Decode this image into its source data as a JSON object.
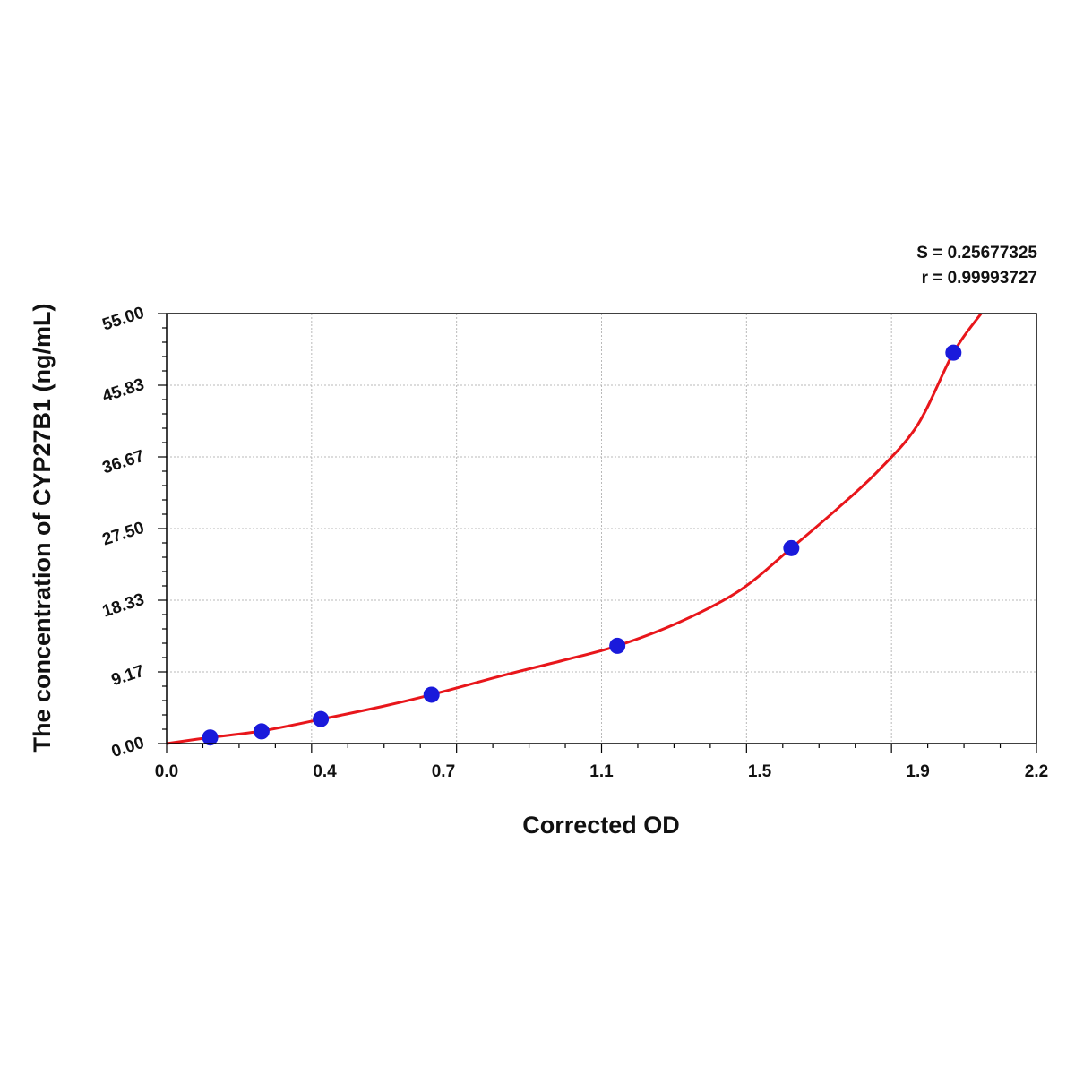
{
  "stats": {
    "s_text": "S = 0.25677325",
    "r_text": "r = 0.99993727"
  },
  "chart_data": {
    "type": "scatter",
    "title": "",
    "xlabel": "Corrected OD",
    "ylabel": "The concentration of CYP27B1 (ng/mL)",
    "xlim": [
      0.0,
      2.2
    ],
    "ylim": [
      0.0,
      55.0
    ],
    "x_tick_values": [
      0.0,
      0.4,
      0.7,
      1.1,
      1.5,
      1.9,
      2.2
    ],
    "x_tick_labels": [
      "0.0",
      "0.4",
      "0.7",
      "1.1",
      "1.5",
      "1.9",
      "2.2"
    ],
    "y_tick_values": [
      0.0,
      9.17,
      18.33,
      27.5,
      36.67,
      45.83,
      55.0
    ],
    "y_tick_labels": [
      "0.00",
      "9.17",
      "18.33",
      "27.50",
      "36.67",
      "45.83",
      "55.00"
    ],
    "grid": true,
    "series": [
      {
        "kind": "points",
        "color": "#1a1adb",
        "x": [
          0.11,
          0.24,
          0.39,
          0.67,
          1.14,
          1.58,
          1.99
        ],
        "y": [
          0.78,
          1.56,
          3.13,
          6.25,
          12.5,
          25.0,
          50.0
        ]
      },
      {
        "kind": "fit-curve",
        "color": "#e8161b",
        "x": [
          0.0,
          0.11,
          0.24,
          0.39,
          0.55,
          0.67,
          0.85,
          1.0,
          1.14,
          1.3,
          1.45,
          1.58,
          1.7,
          1.8,
          1.9,
          1.99,
          2.06
        ],
        "y": [
          0.0,
          0.78,
          1.6,
          3.1,
          4.8,
          6.25,
          8.7,
          10.6,
          12.5,
          15.6,
          19.6,
          25.0,
          30.2,
          34.9,
          40.8,
          50.0,
          55.0
        ]
      }
    ]
  }
}
